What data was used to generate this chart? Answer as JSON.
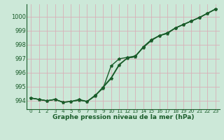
{
  "title": "Graphe pression niveau de la mer (hPa)",
  "background_color": "#cce8d8",
  "grid_color": "#d8b0b8",
  "line_color": "#1a5c2a",
  "text_color": "#1a5c2a",
  "xlim": [
    -0.5,
    23.5
  ],
  "ylim": [
    993.4,
    1000.9
  ],
  "yticks": [
    994,
    995,
    996,
    997,
    998,
    999,
    1000
  ],
  "xticks": [
    0,
    1,
    2,
    3,
    4,
    5,
    6,
    7,
    8,
    9,
    10,
    11,
    12,
    13,
    14,
    15,
    16,
    17,
    18,
    19,
    20,
    21,
    22,
    23
  ],
  "series1": [
    994.2,
    994.1,
    994.0,
    994.1,
    993.9,
    993.95,
    994.1,
    993.95,
    994.4,
    994.9,
    996.5,
    997.0,
    997.1,
    997.2,
    997.8,
    998.3,
    998.65,
    998.8,
    999.2,
    999.45,
    999.7,
    999.95,
    1000.25,
    1000.55
  ],
  "series2": [
    994.2,
    994.1,
    994.0,
    994.1,
    993.9,
    993.95,
    994.05,
    993.95,
    994.35,
    994.95,
    995.6,
    996.55,
    997.05,
    997.15,
    997.85,
    998.35,
    998.65,
    998.85,
    999.2,
    999.45,
    999.7,
    999.95,
    1000.25,
    1000.55
  ],
  "series3": [
    994.2,
    994.1,
    994.0,
    994.1,
    993.9,
    993.95,
    994.05,
    993.95,
    994.35,
    995.0,
    995.65,
    996.6,
    997.05,
    997.15,
    997.85,
    998.35,
    998.65,
    998.85,
    999.2,
    999.45,
    999.7,
    999.95,
    1000.25,
    1000.55
  ]
}
